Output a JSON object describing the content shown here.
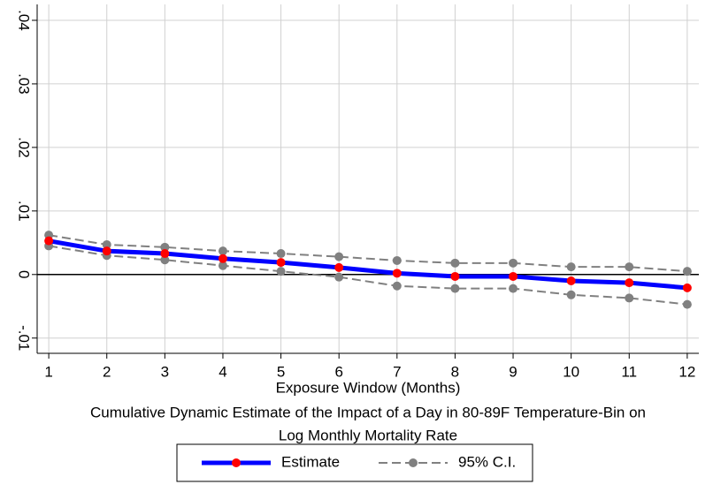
{
  "chart_data": {
    "type": "line",
    "x_label": "Exposure Window (Months)",
    "note": [
      "Cumulative Dynamic Estimate of the Impact of a Day in 80-89F Temperature-Bin on",
      "Log Monthly Mortality Rate"
    ],
    "x": [
      1,
      2,
      3,
      4,
      5,
      6,
      7,
      8,
      9,
      10,
      11,
      12
    ],
    "xlim": [
      0.8,
      12.2
    ],
    "xticks": [
      1,
      2,
      3,
      4,
      5,
      6,
      7,
      8,
      9,
      10,
      11,
      12
    ],
    "ylim": [
      -0.0124,
      0.0425
    ],
    "yticks": [
      {
        "value": -0.01,
        "label": "-.01"
      },
      0,
      {
        "value": 0.01,
        "label": ".01"
      },
      {
        "value": 0.02,
        "label": ".02"
      },
      {
        "value": 0.03,
        "label": ".03"
      },
      {
        "value": 0.04,
        "label": ".04"
      }
    ],
    "grid": true,
    "reference_line": 0,
    "series": [
      {
        "name": "Estimate",
        "color": "#0000ff",
        "marker_color": "#ff0000",
        "values": [
          0.0053,
          0.0037,
          0.0033,
          0.0025,
          0.0019,
          0.0011,
          0.0002,
          -0.0003,
          -0.0003,
          -0.001,
          -0.0013,
          -0.0021
        ]
      },
      {
        "name": "95% C.I.",
        "color": "#808080",
        "upper": [
          0.0062,
          0.0047,
          0.0043,
          0.0037,
          0.0033,
          0.0028,
          0.0022,
          0.0018,
          0.0018,
          0.0012,
          0.0012,
          0.0005
        ],
        "lower": [
          0.0045,
          0.003,
          0.0023,
          0.0014,
          0.0005,
          -0.0004,
          -0.0018,
          -0.0022,
          -0.0022,
          -0.0032,
          -0.0037,
          -0.0047
        ]
      }
    ]
  }
}
